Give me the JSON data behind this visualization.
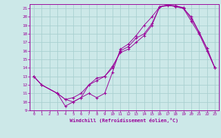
{
  "bg_color": "#cce8e8",
  "grid_color": "#a8d0d0",
  "line_color": "#990099",
  "marker": "+",
  "xlim": [
    -0.5,
    23.5
  ],
  "ylim": [
    9,
    21.5
  ],
  "xlabel": "Windchill (Refroidissement éolien,°C)",
  "xticks": [
    0,
    1,
    2,
    3,
    4,
    5,
    6,
    7,
    8,
    9,
    10,
    11,
    12,
    13,
    14,
    15,
    16,
    17,
    18,
    19,
    20,
    21,
    22,
    23
  ],
  "yticks": [
    9,
    10,
    11,
    12,
    13,
    14,
    15,
    16,
    17,
    18,
    19,
    20,
    21
  ],
  "line1_x": [
    0,
    1,
    3,
    4,
    5,
    6,
    7,
    8,
    9,
    10,
    11,
    12,
    13,
    14,
    15,
    16,
    17,
    18,
    19,
    20,
    21,
    22,
    23
  ],
  "line1_y": [
    13,
    12,
    11,
    9.5,
    10,
    10.5,
    12,
    12.8,
    13,
    14.0,
    16.0,
    16.5,
    17.5,
    18.0,
    19.2,
    21.2,
    21.3,
    21.3,
    21.0,
    20.0,
    18.2,
    16.3,
    14.0
  ],
  "line2_x": [
    0,
    1,
    3,
    4,
    5,
    6,
    7,
    8,
    9,
    10,
    11,
    12,
    13,
    14,
    15,
    16,
    17,
    18,
    19,
    20,
    21,
    22,
    23
  ],
  "line2_y": [
    13,
    12,
    11,
    10.3,
    10.0,
    10.5,
    11.0,
    10.5,
    11.0,
    13.5,
    16.2,
    16.8,
    17.8,
    19.0,
    20.0,
    21.2,
    21.4,
    21.3,
    21.1,
    19.8,
    18.2,
    16.3,
    14.0
  ],
  "line3_x": [
    0,
    1,
    3,
    4,
    5,
    6,
    7,
    8,
    9,
    10,
    11,
    12,
    13,
    14,
    15,
    16,
    17,
    18,
    19,
    20,
    21,
    22,
    23
  ],
  "line3_y": [
    13,
    12,
    11,
    10.3,
    10.5,
    11.0,
    12.0,
    12.5,
    13.0,
    14.2,
    15.8,
    16.2,
    17.0,
    17.8,
    19.0,
    21.2,
    21.4,
    21.2,
    21.0,
    19.5,
    18.0,
    16.0,
    14.0
  ]
}
